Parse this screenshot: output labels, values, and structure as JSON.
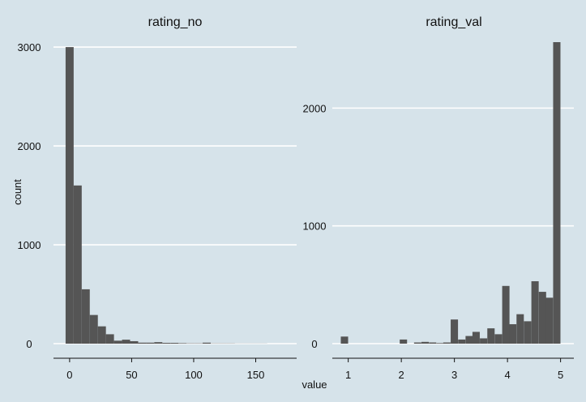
{
  "chart_data": {
    "type": "bar",
    "subtype": "histogram-facets",
    "xlabel": "value",
    "ylabel": "count",
    "grid": "horizontal major lines",
    "colors": {
      "background": "#d6e3ea",
      "bar": "#555555",
      "grid": "#ffffff",
      "text": "#111111"
    },
    "facets": [
      {
        "title": "rating_no",
        "binwidth": 6.5,
        "xlim": [
          -13,
          183
        ],
        "ylim": [
          0,
          3050
        ],
        "xticks": [
          0,
          50,
          100,
          150
        ],
        "yticks": [
          0,
          1000,
          2000,
          3000
        ],
        "bins": [
          [
            -3.25,
            3000
          ],
          [
            3.25,
            1600
          ],
          [
            9.75,
            550
          ],
          [
            16.25,
            290
          ],
          [
            22.75,
            175
          ],
          [
            29.25,
            95
          ],
          [
            35.75,
            30
          ],
          [
            42.25,
            40
          ],
          [
            48.75,
            25
          ],
          [
            55.25,
            10
          ],
          [
            61.75,
            10
          ],
          [
            68.25,
            15
          ],
          [
            74.75,
            8
          ],
          [
            81.25,
            8
          ],
          [
            87.75,
            5
          ],
          [
            94.25,
            3
          ],
          [
            100.75,
            3
          ],
          [
            107.25,
            10
          ],
          [
            113.75,
            2
          ],
          [
            120.25,
            2
          ],
          [
            126.75,
            2
          ],
          [
            133.25,
            1
          ],
          [
            139.75,
            1
          ],
          [
            146.25,
            1
          ],
          [
            152.75,
            1
          ]
        ]
      },
      {
        "title": "rating_val",
        "binwidth": 0.1379,
        "xlim": [
          0.7,
          5.25
        ],
        "ylim": [
          0,
          2560
        ],
        "xticks": [
          1,
          2,
          3,
          4,
          5
        ],
        "yticks": [
          0,
          1000,
          2000
        ],
        "bins": [
          [
            0.86,
            60
          ],
          [
            1.0,
            0
          ],
          [
            1.14,
            0
          ],
          [
            1.27,
            0
          ],
          [
            1.41,
            0
          ],
          [
            1.55,
            0
          ],
          [
            1.69,
            0
          ],
          [
            1.83,
            0
          ],
          [
            1.97,
            35
          ],
          [
            2.1,
            0
          ],
          [
            2.24,
            10
          ],
          [
            2.38,
            15
          ],
          [
            2.52,
            10
          ],
          [
            2.66,
            5
          ],
          [
            2.79,
            10
          ],
          [
            2.93,
            205
          ],
          [
            3.07,
            35
          ],
          [
            3.21,
            65
          ],
          [
            3.34,
            100
          ],
          [
            3.48,
            45
          ],
          [
            3.62,
            130
          ],
          [
            3.76,
            80
          ],
          [
            3.9,
            490
          ],
          [
            4.03,
            165
          ],
          [
            4.17,
            250
          ],
          [
            4.31,
            190
          ],
          [
            4.45,
            530
          ],
          [
            4.59,
            440
          ],
          [
            4.72,
            390
          ],
          [
            4.86,
            2560
          ]
        ]
      }
    ]
  }
}
